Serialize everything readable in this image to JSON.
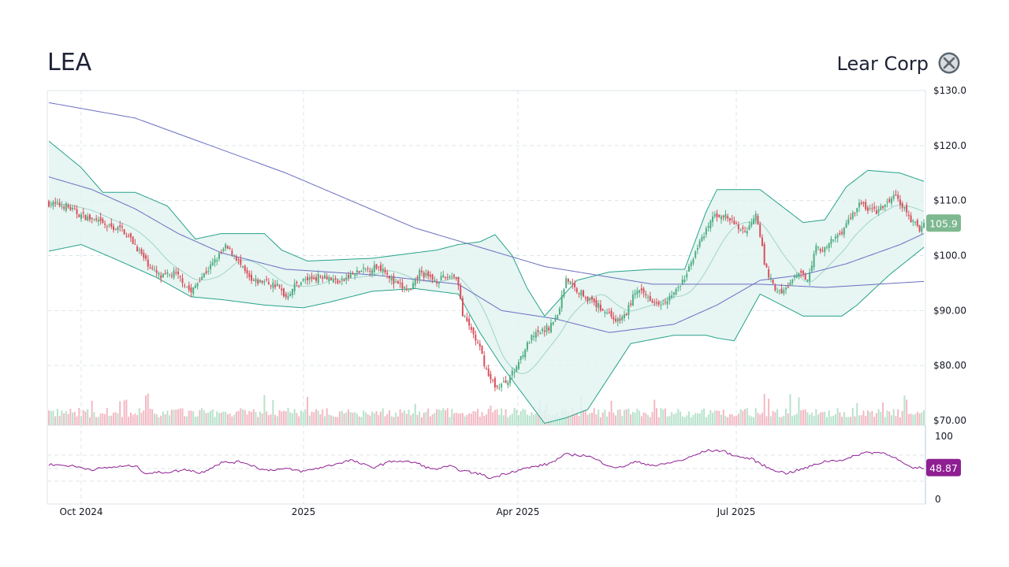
{
  "header": {
    "ticker": "LEA",
    "company": "Lear Corp"
  },
  "colors": {
    "up": "#4fae82",
    "down": "#d8505c",
    "bollinger": "#26a38a",
    "bollinger_fill": "#e3f3f1",
    "ma_long": "#6a6fc0",
    "rsi": "#8e1e92",
    "grid": "#dde6ea",
    "price_badge": "#7eb890",
    "rsi_badge": "#8e1e92"
  },
  "chart_data": [
    {
      "type": "candlestick",
      "title": "LEA",
      "subtitle": "Lear Corp",
      "x_labels": [
        "Oct 2024",
        "2025",
        "Apr 2025",
        "Jul 2025"
      ],
      "y_ticks": [
        "$130.0",
        "$120.0",
        "$110.0",
        "$100.0",
        "$90.00",
        "$80.00",
        "$70.00"
      ],
      "ylim": [
        70,
        130
      ],
      "last_price_label": "105.9",
      "close_keypoints": [
        [
          0,
          109.5
        ],
        [
          8,
          109.0
        ],
        [
          14,
          107.5
        ],
        [
          20,
          106.5
        ],
        [
          28,
          105.2
        ],
        [
          34,
          104.8
        ],
        [
          40,
          102.0
        ],
        [
          44,
          99.5
        ],
        [
          48,
          97.5
        ],
        [
          52,
          96.0
        ],
        [
          58,
          96.8
        ],
        [
          62,
          95.5
        ],
        [
          66,
          93.2
        ],
        [
          70,
          95.8
        ],
        [
          74,
          97.5
        ],
        [
          78,
          99.5
        ],
        [
          82,
          101.5
        ],
        [
          86,
          100.2
        ],
        [
          90,
          97.5
        ],
        [
          94,
          95.2
        ],
        [
          100,
          95.3
        ],
        [
          106,
          94.5
        ],
        [
          110,
          92.5
        ],
        [
          114,
          94.5
        ],
        [
          118,
          95.5
        ],
        [
          124,
          96.0
        ],
        [
          128,
          96.5
        ],
        [
          132,
          95.5
        ],
        [
          136,
          95.2
        ],
        [
          140,
          96.5
        ],
        [
          144,
          97.0
        ],
        [
          148,
          97.5
        ],
        [
          152,
          98.0
        ],
        [
          156,
          97.5
        ],
        [
          160,
          95.0
        ],
        [
          164,
          94.2
        ],
        [
          168,
          93.5
        ],
        [
          172,
          97.0
        ],
        [
          176,
          96.0
        ],
        [
          180,
          95.5
        ],
        [
          184,
          96.0
        ],
        [
          188,
          96.5
        ],
        [
          190,
          95.0
        ],
        [
          192,
          89.0
        ],
        [
          196,
          86.5
        ],
        [
          200,
          83.0
        ],
        [
          204,
          78.0
        ],
        [
          208,
          76.0
        ],
        [
          212,
          77.0
        ],
        [
          216,
          79.0
        ],
        [
          220,
          82.5
        ],
        [
          224,
          85.0
        ],
        [
          228,
          86.0
        ],
        [
          232,
          87.0
        ],
        [
          236,
          89.0
        ],
        [
          240,
          96.0
        ],
        [
          244,
          94.0
        ],
        [
          248,
          93.0
        ],
        [
          252,
          91.5
        ],
        [
          256,
          90.5
        ],
        [
          260,
          89.5
        ],
        [
          264,
          88.0
        ],
        [
          268,
          89.5
        ],
        [
          272,
          93.5
        ],
        [
          276,
          93.0
        ],
        [
          280,
          92.0
        ],
        [
          284,
          91.5
        ],
        [
          288,
          92.5
        ],
        [
          292,
          94.0
        ],
        [
          296,
          96.5
        ],
        [
          300,
          101.0
        ],
        [
          304,
          103.5
        ],
        [
          308,
          107.0
        ],
        [
          312,
          107.5
        ],
        [
          316,
          106.5
        ],
        [
          320,
          105.0
        ],
        [
          324,
          104.5
        ],
        [
          328,
          108.0
        ],
        [
          330,
          104.0
        ],
        [
          332,
          98.5
        ],
        [
          336,
          94.5
        ],
        [
          340,
          93.0
        ],
        [
          344,
          95.0
        ],
        [
          348,
          96.5
        ],
        [
          352,
          96.0
        ],
        [
          356,
          101.5
        ],
        [
          360,
          101.0
        ],
        [
          364,
          103.0
        ],
        [
          368,
          104.5
        ],
        [
          372,
          107.0
        ],
        [
          376,
          109.5
        ],
        [
          380,
          108.5
        ],
        [
          384,
          108.0
        ],
        [
          388,
          109.0
        ],
        [
          392,
          111.0
        ],
        [
          396,
          109.0
        ],
        [
          400,
          106.5
        ],
        [
          404,
          104.8
        ],
        [
          406,
          105.9
        ]
      ],
      "series": [
        {
          "type": "line",
          "values": [
            [
              0,
              127.8
            ],
            [
              40,
              125.0
            ],
            [
              110,
              115.0
            ],
            [
              170,
              105.0
            ],
            [
              230,
              98.0
            ],
            [
              280,
              94.8
            ],
            [
              330,
              94.8
            ],
            [
              360,
              94.2
            ],
            [
              406,
              95.3
            ]
          ]
        },
        {
          "type": "line",
          "values": [
            [
              0,
              114.3
            ],
            [
              20,
              112.0
            ],
            [
              40,
              108.5
            ],
            [
              60,
              104.0
            ],
            [
              80,
              100.5
            ],
            [
              110,
              97.5
            ],
            [
              150,
              96.5
            ],
            [
              190,
              94.8
            ],
            [
              210,
              90.0
            ],
            [
              235,
              88.5
            ],
            [
              260,
              86.0
            ],
            [
              290,
              87.5
            ],
            [
              310,
              91.0
            ],
            [
              330,
              95.5
            ],
            [
              350,
              96.5
            ],
            [
              370,
              98.5
            ],
            [
              395,
              102.0
            ],
            [
              406,
              104.0
            ]
          ]
        },
        {
          "type": "band",
          "name": "Bollinger",
          "upper": [
            [
              0,
              120.8
            ],
            [
              15,
              116.0
            ],
            [
              25,
              111.5
            ],
            [
              40,
              111.5
            ],
            [
              55,
              109.0
            ],
            [
              68,
              103.0
            ],
            [
              80,
              104.0
            ],
            [
              88,
              104.0
            ],
            [
              100,
              104.0
            ],
            [
              108,
              101.0
            ],
            [
              120,
              99.0
            ],
            [
              150,
              99.5
            ],
            [
              180,
              101.0
            ],
            [
              190,
              102.0
            ],
            [
              200,
              102.5
            ],
            [
              207,
              103.8
            ],
            [
              215,
              100.0
            ],
            [
              222,
              94.0
            ],
            [
              230,
              89.0
            ],
            [
              245,
              95.5
            ],
            [
              260,
              97.0
            ],
            [
              280,
              97.5
            ],
            [
              295,
              97.5
            ],
            [
              305,
              108.0
            ],
            [
              310,
              112.0
            ],
            [
              320,
              112.0
            ],
            [
              330,
              112.0
            ],
            [
              340,
              109.0
            ],
            [
              350,
              106.0
            ],
            [
              360,
              106.5
            ],
            [
              370,
              112.5
            ],
            [
              380,
              115.5
            ],
            [
              395,
              115.0
            ],
            [
              406,
              113.5
            ]
          ],
          "lower": [
            [
              0,
              100.8
            ],
            [
              15,
              102.0
            ],
            [
              30,
              99.5
            ],
            [
              50,
              96.0
            ],
            [
              66,
              92.5
            ],
            [
              80,
              92.0
            ],
            [
              100,
              91.0
            ],
            [
              118,
              90.5
            ],
            [
              130,
              91.5
            ],
            [
              150,
              93.5
            ],
            [
              170,
              94.0
            ],
            [
              190,
              93.0
            ],
            [
              200,
              86.0
            ],
            [
              210,
              80.0
            ],
            [
              230,
              69.5
            ],
            [
              240,
              70.5
            ],
            [
              250,
              72.0
            ],
            [
              270,
              84.0
            ],
            [
              290,
              85.5
            ],
            [
              305,
              85.5
            ],
            [
              310,
              85.0
            ],
            [
              318,
              84.5
            ],
            [
              330,
              93.0
            ],
            [
              350,
              89.0
            ],
            [
              360,
              89.0
            ],
            [
              368,
              89.0
            ],
            [
              375,
              91.0
            ],
            [
              390,
              96.5
            ],
            [
              406,
              101.5
            ]
          ]
        }
      ],
      "volume": {
        "note": "volume bars along the bottom of the price pane"
      }
    },
    {
      "type": "line",
      "name": "RSI",
      "y_ticks": [
        "100",
        "0"
      ],
      "ylim": [
        0,
        100
      ],
      "last_value_label": "48.87",
      "values": [
        [
          0,
          54
        ],
        [
          10,
          52
        ],
        [
          20,
          46
        ],
        [
          30,
          50
        ],
        [
          40,
          52
        ],
        [
          45,
          40
        ],
        [
          55,
          42
        ],
        [
          65,
          46
        ],
        [
          70,
          40
        ],
        [
          80,
          57
        ],
        [
          90,
          58
        ],
        [
          100,
          45
        ],
        [
          110,
          47
        ],
        [
          118,
          43
        ],
        [
          130,
          52
        ],
        [
          140,
          61
        ],
        [
          150,
          49
        ],
        [
          160,
          60
        ],
        [
          170,
          57
        ],
        [
          178,
          46
        ],
        [
          186,
          51
        ],
        [
          192,
          44
        ],
        [
          200,
          39
        ],
        [
          205,
          32
        ],
        [
          212,
          40
        ],
        [
          220,
          47
        ],
        [
          232,
          55
        ],
        [
          240,
          70
        ],
        [
          250,
          68
        ],
        [
          258,
          55
        ],
        [
          264,
          48
        ],
        [
          272,
          58
        ],
        [
          282,
          52
        ],
        [
          295,
          62
        ],
        [
          305,
          76
        ],
        [
          312,
          76
        ],
        [
          320,
          66
        ],
        [
          326,
          63
        ],
        [
          334,
          48
        ],
        [
          342,
          40
        ],
        [
          350,
          47
        ],
        [
          360,
          59
        ],
        [
          370,
          62
        ],
        [
          378,
          73
        ],
        [
          386,
          73
        ],
        [
          390,
          70
        ],
        [
          395,
          59
        ],
        [
          400,
          48
        ],
        [
          406,
          49
        ]
      ]
    }
  ]
}
